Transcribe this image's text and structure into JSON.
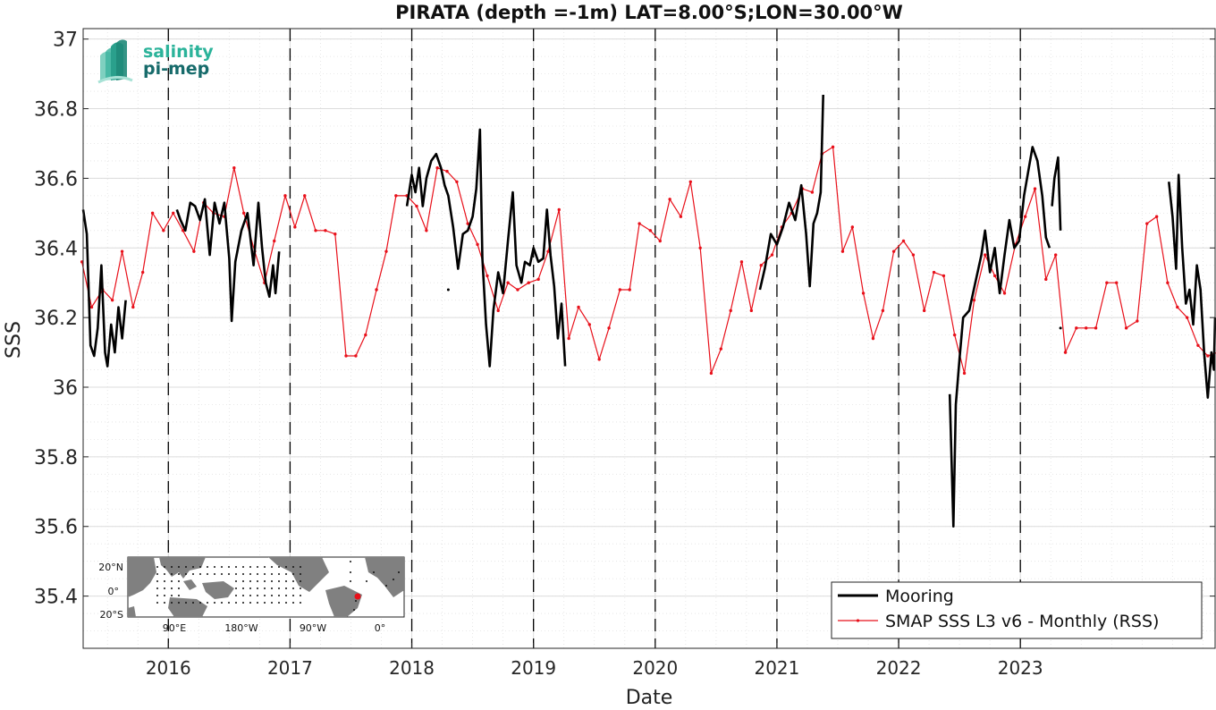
{
  "chart_data": {
    "type": "line",
    "title": "PIRATA (depth =-1m) LAT=8.00°S;LON=30.00°W",
    "xlabel": "Date",
    "ylabel": "SSS",
    "xlim": [
      2015.3,
      2024.6
    ],
    "ylim": [
      35.25,
      37.03
    ],
    "grid": true,
    "legend_location": "bottom-right",
    "yticks": [
      "35.4",
      "35.6",
      "35.8",
      "36",
      "36.2",
      "36.4",
      "36.6",
      "36.8",
      "37"
    ],
    "yticks_values": [
      35.4,
      35.6,
      35.8,
      36.0,
      36.2,
      36.4,
      36.6,
      36.8,
      37.0
    ],
    "xticks": [
      "2016",
      "2017",
      "2018",
      "2019",
      "2020",
      "2021",
      "2022",
      "2023"
    ],
    "xticks_values": [
      2016,
      2017,
      2018,
      2019,
      2020,
      2021,
      2022,
      2023
    ],
    "year_markers": [
      2016,
      2017,
      2018,
      2019,
      2020,
      2021,
      2022,
      2023
    ],
    "colors": {
      "mooring": "#000000",
      "smap": "#e8101a",
      "grid": "#dcdcdc",
      "marker_lines": "#000000"
    },
    "series": [
      {
        "name": "Mooring",
        "style": "thick-black-line",
        "segments": [
          [
            [
              2015.3,
              36.51
            ],
            [
              2015.33,
              36.44
            ],
            [
              2015.36,
              36.12
            ],
            [
              2015.39,
              36.09
            ],
            [
              2015.42,
              36.17
            ],
            [
              2015.45,
              36.35
            ],
            [
              2015.48,
              36.1
            ],
            [
              2015.5,
              36.06
            ],
            [
              2015.53,
              36.18
            ],
            [
              2015.56,
              36.1
            ],
            [
              2015.59,
              36.23
            ],
            [
              2015.62,
              36.14
            ],
            [
              2015.65,
              36.25
            ]
          ],
          [
            [
              2016.07,
              36.51
            ],
            [
              2016.1,
              36.48
            ],
            [
              2016.14,
              36.45
            ],
            [
              2016.18,
              36.53
            ],
            [
              2016.22,
              36.52
            ],
            [
              2016.26,
              36.48
            ],
            [
              2016.3,
              36.54
            ],
            [
              2016.34,
              36.38
            ],
            [
              2016.38,
              36.53
            ],
            [
              2016.42,
              36.47
            ],
            [
              2016.46,
              36.53
            ],
            [
              2016.5,
              36.37
            ],
            [
              2016.52,
              36.19
            ],
            [
              2016.55,
              36.36
            ],
            [
              2016.6,
              36.45
            ],
            [
              2016.65,
              36.5
            ],
            [
              2016.7,
              36.35
            ],
            [
              2016.74,
              36.53
            ],
            [
              2016.77,
              36.4
            ],
            [
              2016.8,
              36.3
            ],
            [
              2016.83,
              36.26
            ],
            [
              2016.86,
              36.35
            ],
            [
              2016.88,
              36.27
            ],
            [
              2016.91,
              36.39
            ]
          ],
          [
            [
              2017.96,
              36.52
            ],
            [
              2018.0,
              36.61
            ],
            [
              2018.03,
              36.56
            ],
            [
              2018.06,
              36.63
            ],
            [
              2018.09,
              36.52
            ],
            [
              2018.12,
              36.6
            ],
            [
              2018.16,
              36.65
            ],
            [
              2018.2,
              36.67
            ],
            [
              2018.24,
              36.63
            ],
            [
              2018.27,
              36.58
            ],
            [
              2018.3,
              36.55
            ],
            [
              2018.34,
              36.46
            ],
            [
              2018.38,
              36.34
            ],
            [
              2018.42,
              36.44
            ],
            [
              2018.46,
              36.45
            ],
            [
              2018.5,
              36.49
            ],
            [
              2018.53,
              36.57
            ],
            [
              2018.56,
              36.74
            ],
            [
              2018.58,
              36.37
            ],
            [
              2018.61,
              36.18
            ],
            [
              2018.64,
              36.06
            ],
            [
              2018.67,
              36.22
            ],
            [
              2018.71,
              36.33
            ],
            [
              2018.75,
              36.27
            ],
            [
              2018.79,
              36.42
            ],
            [
              2018.83,
              36.56
            ],
            [
              2018.86,
              36.35
            ],
            [
              2018.9,
              36.3
            ],
            [
              2018.93,
              36.36
            ],
            [
              2018.97,
              36.35
            ],
            [
              2019.0,
              36.4
            ],
            [
              2019.04,
              36.36
            ],
            [
              2019.08,
              36.37
            ],
            [
              2019.11,
              36.51
            ],
            [
              2019.14,
              36.38
            ],
            [
              2019.17,
              36.29
            ],
            [
              2019.2,
              36.14
            ],
            [
              2019.23,
              36.24
            ],
            [
              2019.26,
              36.06
            ]
          ],
          [
            [
              2020.86,
              36.28
            ],
            [
              2020.9,
              36.34
            ],
            [
              2020.95,
              36.44
            ],
            [
              2021.0,
              36.41
            ],
            [
              2021.05,
              36.46
            ],
            [
              2021.1,
              36.53
            ],
            [
              2021.15,
              36.48
            ],
            [
              2021.2,
              36.58
            ],
            [
              2021.24,
              36.44
            ],
            [
              2021.27,
              36.29
            ],
            [
              2021.3,
              36.47
            ],
            [
              2021.33,
              36.5
            ],
            [
              2021.36,
              36.56
            ],
            [
              2021.38,
              36.84
            ]
          ],
          [
            [
              2022.42,
              35.98
            ],
            [
              2022.45,
              35.6
            ],
            [
              2022.47,
              35.95
            ],
            [
              2022.5,
              36.08
            ],
            [
              2022.53,
              36.2
            ],
            [
              2022.58,
              36.22
            ],
            [
              2022.63,
              36.3
            ],
            [
              2022.68,
              36.38
            ],
            [
              2022.71,
              36.45
            ],
            [
              2022.75,
              36.33
            ],
            [
              2022.79,
              36.4
            ],
            [
              2022.83,
              36.27
            ],
            [
              2022.87,
              36.38
            ],
            [
              2022.91,
              36.48
            ],
            [
              2022.95,
              36.4
            ],
            [
              2022.99,
              36.42
            ],
            [
              2023.03,
              36.55
            ],
            [
              2023.07,
              36.63
            ],
            [
              2023.1,
              36.69
            ],
            [
              2023.14,
              36.65
            ],
            [
              2023.18,
              36.55
            ],
            [
              2023.21,
              36.43
            ],
            [
              2023.24,
              36.4
            ]
          ],
          [
            [
              2023.26,
              36.52
            ],
            [
              2023.28,
              36.6
            ],
            [
              2023.31,
              36.66
            ],
            [
              2023.33,
              36.45
            ]
          ],
          [
            [
              2024.22,
              36.59
            ],
            [
              2024.25,
              36.49
            ],
            [
              2024.28,
              36.34
            ],
            [
              2024.3,
              36.61
            ],
            [
              2024.33,
              36.4
            ],
            [
              2024.36,
              36.24
            ],
            [
              2024.39,
              36.28
            ],
            [
              2024.42,
              36.18
            ],
            [
              2024.45,
              36.35
            ],
            [
              2024.48,
              36.28
            ],
            [
              2024.51,
              36.1
            ],
            [
              2024.54,
              35.97
            ],
            [
              2024.57,
              36.1
            ],
            [
              2024.59,
              36.05
            ],
            [
              2024.6,
              36.2
            ]
          ]
        ],
        "isolated_points": [
          [
            2018.3,
            36.28
          ],
          [
            2023.33,
            36.17
          ]
        ]
      },
      {
        "name": "SMAP SSS L3 v6 - Monthly (RSS)",
        "style": "thin-red-line-with-dots",
        "x": [
          2015.29,
          2015.37,
          2015.46,
          2015.54,
          2015.62,
          2015.71,
          2015.79,
          2015.87,
          2015.96,
          2016.04,
          2016.12,
          2016.21,
          2016.29,
          2016.37,
          2016.46,
          2016.54,
          2016.62,
          2016.71,
          2016.79,
          2016.87,
          2016.96,
          2017.04,
          2017.12,
          2017.21,
          2017.29,
          2017.37,
          2017.46,
          2017.54,
          2017.62,
          2017.71,
          2017.79,
          2017.87,
          2017.96,
          2018.04,
          2018.12,
          2018.21,
          2018.29,
          2018.37,
          2018.46,
          2018.54,
          2018.62,
          2018.71,
          2018.79,
          2018.87,
          2018.96,
          2019.04,
          2019.12,
          2019.21,
          2019.29,
          2019.37,
          2019.46,
          2019.54,
          2019.62,
          2019.71,
          2019.79,
          2019.87,
          2019.96,
          2020.04,
          2020.12,
          2020.21,
          2020.29,
          2020.37,
          2020.46,
          2020.54,
          2020.62,
          2020.71,
          2020.79,
          2020.87,
          2020.96,
          2021.04,
          2021.12,
          2021.21,
          2021.29,
          2021.37,
          2021.46,
          2021.54,
          2021.62,
          2021.71,
          2021.79,
          2021.87,
          2021.96,
          2022.04,
          2022.12,
          2022.21,
          2022.29,
          2022.37,
          2022.46,
          2022.54,
          2022.62,
          2022.71,
          2022.79,
          2022.87,
          2022.96,
          2023.04,
          2023.12,
          2023.21,
          2023.29,
          2023.37,
          2023.46,
          2023.54,
          2023.62,
          2023.71,
          2023.79,
          2023.87,
          2023.96,
          2024.04,
          2024.12,
          2024.21,
          2024.29,
          2024.37,
          2024.46,
          2024.54,
          2024.62
        ],
        "y": [
          36.36,
          36.23,
          36.28,
          36.25,
          36.39,
          36.23,
          36.33,
          36.5,
          36.45,
          36.5,
          36.45,
          36.39,
          36.53,
          36.5,
          36.49,
          36.63,
          36.5,
          36.39,
          36.3,
          36.42,
          36.55,
          36.46,
          36.55,
          36.45,
          36.45,
          36.44,
          36.09,
          36.09,
          36.15,
          36.28,
          36.39,
          36.55,
          36.55,
          36.52,
          36.45,
          36.63,
          36.62,
          36.59,
          36.47,
          36.41,
          36.32,
          36.22,
          36.3,
          36.28,
          36.3,
          36.31,
          36.39,
          36.51,
          36.14,
          36.23,
          36.18,
          36.08,
          36.17,
          36.28,
          36.28,
          36.47,
          36.45,
          36.42,
          36.54,
          36.49,
          36.59,
          36.4,
          36.04,
          36.11,
          36.22,
          36.36,
          36.22,
          36.35,
          36.38,
          36.46,
          36.5,
          36.57,
          36.56,
          36.67,
          36.69,
          36.39,
          36.46,
          36.27,
          36.14,
          36.22,
          36.39,
          36.42,
          36.38,
          36.22,
          36.33,
          36.32,
          36.15,
          36.04,
          36.25,
          36.38,
          36.32,
          36.27,
          36.41,
          36.49,
          36.57,
          36.31,
          36.38,
          36.1,
          36.17,
          36.17,
          36.17,
          36.3,
          36.3,
          36.17,
          36.19,
          36.47,
          36.49,
          36.3,
          36.23,
          36.2,
          36.12,
          36.09,
          36.1
        ]
      }
    ]
  },
  "legend": {
    "mooring_label": "Mooring",
    "smap_label": "SMAP SSS L3 v6 - Monthly (RSS)"
  },
  "logo": {
    "line1": "salinity",
    "line2": "pi-mep"
  },
  "inset_map": {
    "lat_labels": [
      "20°N",
      "0°",
      "20°S"
    ],
    "lon_labels": [
      "90°E",
      "180°W",
      "90°W",
      "0°"
    ],
    "mooring_dot_color": "#e8101a",
    "land_color": "#808080"
  }
}
